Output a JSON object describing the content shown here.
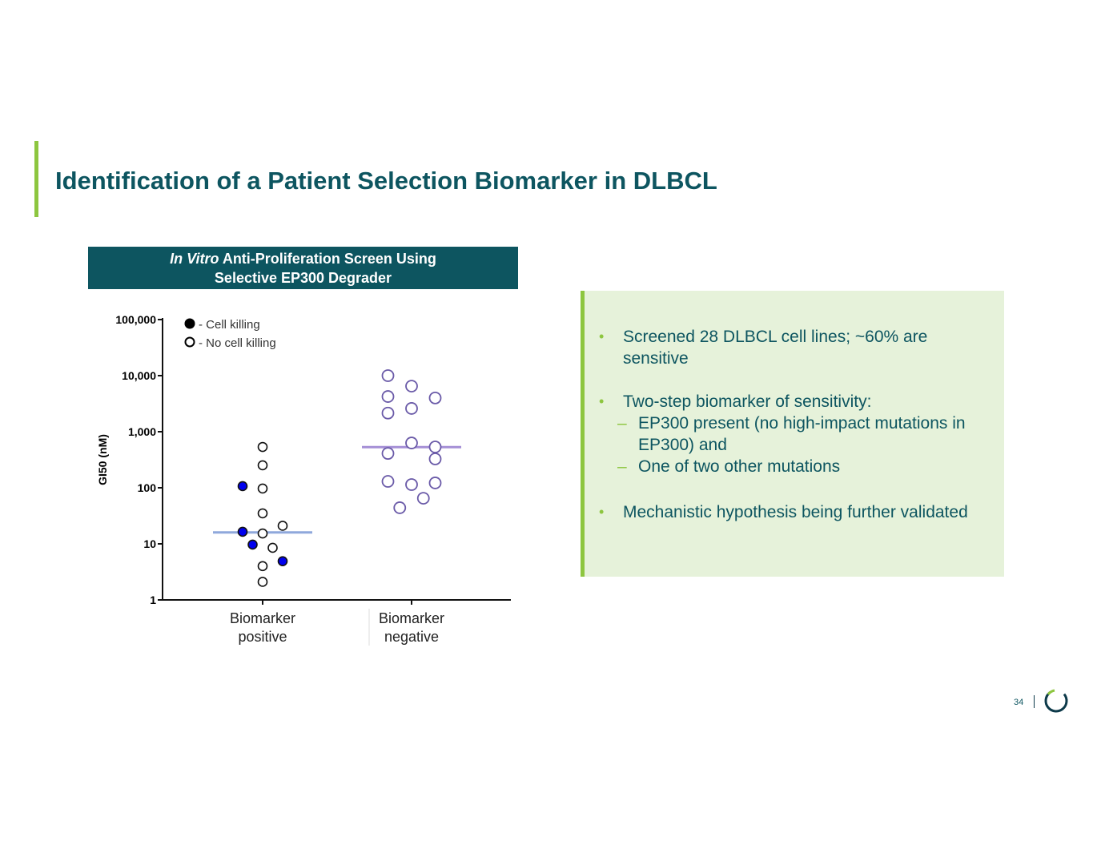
{
  "title": "Identification of a Patient Selection Biomarker in DLBCL",
  "chart_header": {
    "italic": "In Vitro",
    "line1_rest": " Anti-Proliferation Screen Using",
    "line2": "Selective EP300 Degrader"
  },
  "chart_data": {
    "type": "scatter",
    "ylabel": "GI50 (nM)",
    "yscale": "log",
    "ylim": [
      1,
      100000
    ],
    "yticks": [
      1,
      10,
      100,
      1000,
      10000,
      100000
    ],
    "ytick_labels": [
      "1",
      "10",
      "100",
      "1,000",
      "10,000",
      "100,000"
    ],
    "categories": [
      "Biomarker positive",
      "Biomarker negative"
    ],
    "category_lines": [
      [
        "Biomarker",
        "positive"
      ],
      [
        "Biomarker",
        "negative"
      ]
    ],
    "legend": {
      "position": "top-left",
      "entries": [
        "- Cell killing",
        "- No cell killing"
      ]
    },
    "series": [
      {
        "name": "Biomarker positive",
        "color": "#0000ee",
        "median": 16,
        "points": [
          {
            "value": 107,
            "killing": true,
            "jitter": -2
          },
          {
            "value": 16.4,
            "killing": true,
            "jitter": -2
          },
          {
            "value": 9.7,
            "killing": true,
            "jitter": -1
          },
          {
            "value": 4.9,
            "killing": true,
            "jitter": 2
          },
          {
            "value": 535,
            "killing": false,
            "jitter": 0
          },
          {
            "value": 252,
            "killing": false,
            "jitter": 0
          },
          {
            "value": 97,
            "killing": false,
            "jitter": 0
          },
          {
            "value": 35,
            "killing": false,
            "jitter": 0
          },
          {
            "value": 21,
            "killing": false,
            "jitter": 2
          },
          {
            "value": 15.3,
            "killing": false,
            "jitter": 0
          },
          {
            "value": 8.5,
            "killing": false,
            "jitter": 1
          },
          {
            "value": 4,
            "killing": false,
            "jitter": 0
          },
          {
            "value": 2.1,
            "killing": false,
            "jitter": 0
          }
        ]
      },
      {
        "name": "Biomarker negative",
        "color": "#6a5aa8",
        "median": 530,
        "points": [
          {
            "value": 10000,
            "killing": false,
            "jitter": -1
          },
          {
            "value": 6500,
            "killing": false,
            "jitter": 0
          },
          {
            "value": 4240,
            "killing": false,
            "jitter": -1
          },
          {
            "value": 4000,
            "killing": false,
            "jitter": 1
          },
          {
            "value": 2600,
            "killing": false,
            "jitter": 0
          },
          {
            "value": 2150,
            "killing": false,
            "jitter": -1
          },
          {
            "value": 630,
            "killing": false,
            "jitter": 0
          },
          {
            "value": 535,
            "killing": false,
            "jitter": 1
          },
          {
            "value": 410,
            "killing": false,
            "jitter": -1
          },
          {
            "value": 327,
            "killing": false,
            "jitter": 1
          },
          {
            "value": 130,
            "killing": false,
            "jitter": -1
          },
          {
            "value": 114,
            "killing": false,
            "jitter": 0
          },
          {
            "value": 122,
            "killing": false,
            "jitter": 1
          },
          {
            "value": 65,
            "killing": false,
            "jitter": 0.5
          },
          {
            "value": 44,
            "killing": false,
            "jitter": -0.5
          }
        ]
      }
    ],
    "median_colors": [
      "#8fa8dc",
      "#a58fd6"
    ]
  },
  "info": {
    "bullets": [
      "Screened 28 DLBCL cell lines; ~60% are sensitive",
      "Two-step biomarker of sensitivity:",
      "Mechanistic hypothesis being further validated"
    ],
    "sub_bullets": [
      "EP300 present (no high-impact mutations in EP300) and",
      "One of two other mutations"
    ]
  },
  "page_number": "34",
  "colors": {
    "brand": "#0d5560",
    "accent": "#8dc63f",
    "box": "#e6f2da"
  }
}
